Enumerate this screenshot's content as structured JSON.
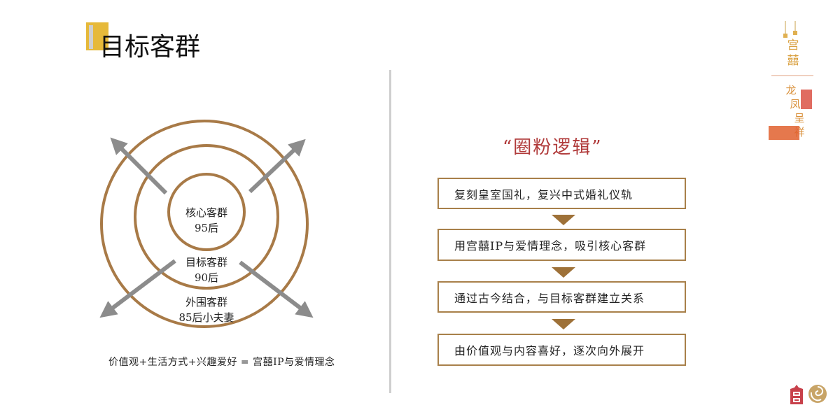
{
  "header": {
    "title": "目标客群"
  },
  "circles": {
    "inner": {
      "line1": "核心客群",
      "line2": "95后"
    },
    "middle": {
      "line1": "目标客群",
      "line2": "90后"
    },
    "outer": {
      "line1": "外围客群",
      "line2": "85后小夫妻"
    },
    "ring_color": "#a87a47",
    "arrow_color": "#8c8c8c"
  },
  "formula": "价值观+生活方式+兴趣爱好 = 宫囍IP与爱情理念",
  "logic": {
    "title": "“圈粉逻辑”",
    "steps": [
      "复刻皇室国礼，复兴中式婚礼仪轨",
      "用宫囍IP与爱情理念，吸引核心客群",
      "通过古今结合，与目标客群建立关系",
      "由价值观与内容喜好，逐次向外展开"
    ]
  },
  "decoration": {
    "text": "宫囍 龙凤呈祥"
  },
  "colors": {
    "accent": "#e6b93a",
    "red": "#b03a3a",
    "gold": "#a8804a"
  }
}
